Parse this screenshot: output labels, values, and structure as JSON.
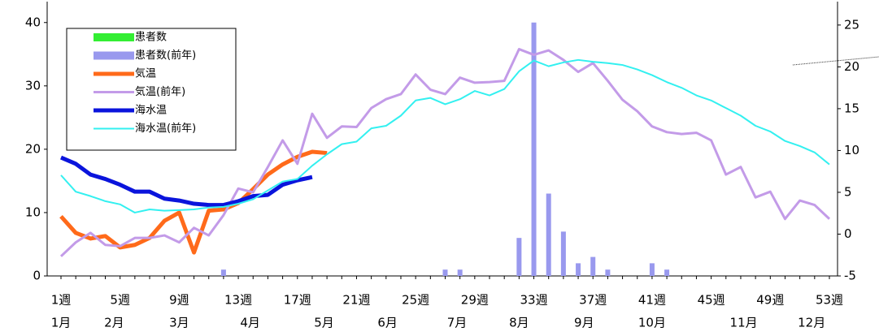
{
  "chart_data": {
    "type": "bar_line",
    "categories": [
      "1週",
      null,
      null,
      null,
      "5週",
      null,
      null,
      null,
      "9週",
      null,
      null,
      null,
      "13週",
      null,
      null,
      null,
      "17週",
      null,
      null,
      null,
      "21週",
      null,
      null,
      null,
      "25週",
      null,
      null,
      null,
      "29週",
      null,
      null,
      null,
      "33週",
      null,
      null,
      null,
      "37週",
      null,
      null,
      null,
      "41週",
      null,
      null,
      null,
      "45週",
      null,
      null,
      null,
      "49週",
      null,
      null,
      null,
      "53週"
    ],
    "months": [
      "1月",
      "2月",
      "3月",
      "4月",
      "5月",
      "6月",
      "7月",
      "8月",
      "9月",
      "10月",
      "11月",
      "12月"
    ],
    "ylim": [
      0,
      43.3
    ],
    "yticks": [
      0,
      10,
      20,
      30,
      40
    ],
    "y2lim": [
      -5,
      27.8
    ],
    "y2ticks": [
      -5,
      0,
      5,
      10,
      15,
      20,
      25
    ],
    "series": [
      {
        "name": "患者数",
        "kind": "bar",
        "color": "#33ee33",
        "values": [
          null,
          null,
          null,
          null,
          null,
          null,
          null,
          null,
          null,
          null,
          null,
          null,
          null,
          null,
          null,
          null,
          null,
          null,
          null,
          null,
          null,
          null,
          null,
          null,
          null,
          null,
          null,
          null,
          null,
          null,
          null,
          null,
          null,
          null,
          null,
          null,
          null,
          null,
          null,
          null,
          null,
          null,
          null,
          null,
          null,
          null,
          null,
          null,
          null,
          null,
          null,
          null,
          null
        ]
      },
      {
        "name": "患者数(前年)",
        "kind": "bar",
        "color": "#9999ee",
        "values": [
          null,
          null,
          null,
          null,
          null,
          null,
          null,
          null,
          null,
          null,
          null,
          1,
          null,
          null,
          null,
          null,
          null,
          null,
          null,
          null,
          null,
          null,
          null,
          null,
          null,
          null,
          1,
          1,
          null,
          null,
          null,
          6,
          40,
          13,
          7,
          2,
          3,
          1,
          null,
          null,
          2,
          1,
          null,
          null,
          null,
          null,
          null,
          null,
          null,
          null,
          null,
          null,
          null
        ]
      },
      {
        "name": "気温",
        "kind": "line",
        "color": "#ff6a1a",
        "width": 5,
        "values": [
          9.4,
          6.8,
          5.9,
          6.3,
          4.5,
          4.9,
          6.0,
          8.7,
          10,
          3.7,
          10.3,
          10.5,
          11.5,
          13.7,
          16,
          17.6,
          18.8,
          19.6,
          19.4,
          null,
          null,
          null,
          null,
          null,
          null,
          null,
          null,
          null,
          null,
          null,
          null,
          null,
          null,
          null,
          null,
          null,
          null,
          null,
          null,
          null,
          null,
          null,
          null,
          null,
          null,
          null,
          null,
          null,
          null,
          null,
          null,
          null,
          null
        ]
      },
      {
        "name": "気温(前年)",
        "kind": "line",
        "color": "#c39be8",
        "width": 3,
        "values": [
          3.1,
          5.3,
          6.8,
          4.9,
          4.7,
          6.0,
          6.0,
          6.4,
          5.3,
          7.6,
          6.4,
          9.6,
          13.8,
          13.2,
          17.2,
          21.4,
          17.7,
          25.6,
          21.8,
          23.6,
          23.5,
          26.5,
          27.9,
          28.7,
          31.8,
          29.4,
          28.7,
          31.3,
          30.5,
          30.6,
          30.8,
          35.8,
          34.9,
          35.6,
          34.1,
          32.2,
          33.6,
          30.8,
          27.8,
          26,
          23.6,
          22.7,
          22.4,
          22.6,
          21.4,
          16,
          17.2,
          12.4,
          13.3,
          9,
          11.9,
          11.2,
          9
        ]
      },
      {
        "name": "海水温",
        "kind": "line",
        "color": "#0a14dc",
        "width": 5,
        "values": [
          18.7,
          17.7,
          16,
          15.3,
          14.4,
          13.3,
          13.3,
          12.2,
          11.9,
          11.4,
          11.2,
          11.2,
          11.8,
          12.6,
          12.8,
          14.4,
          15.1,
          15.6,
          null,
          null,
          null,
          null,
          null,
          null,
          null,
          null,
          null,
          null,
          null,
          null,
          null,
          null,
          null,
          null,
          null,
          null,
          null,
          null,
          null,
          null,
          null,
          null,
          null,
          null,
          null,
          null,
          null,
          null,
          null,
          null,
          null,
          null,
          null
        ]
      },
      {
        "name": "海水温(前年)",
        "kind": "line",
        "color": "#33f0f0",
        "width": 2,
        "values": [
          15.9,
          13.3,
          12.6,
          11.8,
          11.3,
          10,
          10.5,
          10.3,
          10.4,
          10.5,
          10.8,
          10.9,
          11.4,
          12.1,
          13.5,
          14.9,
          15.3,
          17.4,
          19.2,
          20.8,
          21.2,
          23.3,
          23.7,
          25.3,
          27.7,
          28.1,
          27.1,
          27.9,
          29.2,
          28.5,
          29.5,
          32.3,
          34,
          33.1,
          33.7,
          34.1,
          33.8,
          33.6,
          33.3,
          32.6,
          31.7,
          30.6,
          29.7,
          28.5,
          27.7,
          26.5,
          25.3,
          23.7,
          22.8,
          21.3,
          20.5,
          19.5,
          17.6
        ]
      }
    ]
  }
}
